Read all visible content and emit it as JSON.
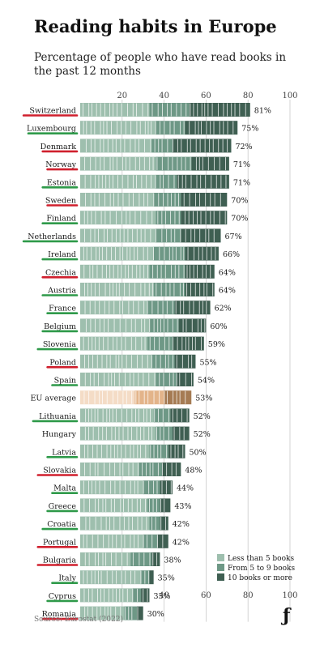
{
  "header": {
    "title": "Reading habits in Europe",
    "subtitle": "Percentage of people who have read books in the past 12 months"
  },
  "footer": {
    "source": "Source: Eurostat (2022)",
    "logo": "ƒ"
  },
  "colors": {
    "less_than_5": "#9ebfae",
    "from_5_to_9": "#6e9886",
    "ten_or_more": "#3f5f52",
    "eu_less_than_5": "#f4dcc6",
    "eu_from_5_to_9": "#e3b48a",
    "eu_ten_or_more": "#a57b53",
    "underline_red": "#d0202e",
    "underline_green": "#2f9a4a"
  },
  "chart_data": {
    "type": "bar",
    "orientation": "horizontal",
    "stacked": true,
    "xlim": [
      0,
      100
    ],
    "x_ticks": [
      20,
      40,
      60,
      80,
      100
    ],
    "grid": true,
    "legend_position": "bottom-right",
    "categories": [
      "Switzerland",
      "Luxembourg",
      "Denmark",
      "Norway",
      "Estonia",
      "Sweden",
      "Finland",
      "Netherlands",
      "Ireland",
      "Czechia",
      "Austria",
      "France",
      "Belgium",
      "Slovenia",
      "Poland",
      "Spain",
      "EU average",
      "Lithuania",
      "Hungary",
      "Latvia",
      "Slovakia",
      "Malta",
      "Greece",
      "Croatia",
      "Portugal",
      "Bulgaria",
      "Italy",
      "Cyprus",
      "Romania"
    ],
    "totals": [
      81,
      75,
      72,
      71,
      71,
      70,
      70,
      67,
      66,
      64,
      64,
      62,
      60,
      59,
      55,
      54,
      53,
      52,
      52,
      50,
      48,
      44,
      43,
      42,
      42,
      38,
      35,
      33,
      30
    ],
    "total_labels": [
      "81%",
      "75%",
      "72%",
      "71%",
      "71%",
      "70%",
      "70%",
      "67%",
      "66%",
      "64%",
      "64%",
      "62%",
      "60%",
      "59%",
      "55%",
      "54%",
      "53%",
      "52%",
      "52%",
      "50%",
      "48%",
      "44%",
      "43%",
      "42%",
      "42%",
      "38%",
      "35%",
      "33%",
      "30%"
    ],
    "underline": [
      "red",
      "green",
      "red",
      "red",
      "green",
      "red",
      "green",
      "green",
      "green",
      "red",
      "green",
      "green",
      "green",
      "green",
      "red",
      "green",
      "none",
      "green",
      "none",
      "green",
      "red",
      "green",
      "green",
      "green",
      "red",
      "red",
      "green",
      "green",
      "red"
    ],
    "series": [
      {
        "name": "Less than 5 books",
        "color_key": "less_than_5",
        "values": [
          33,
          36,
          34,
          36,
          36,
          35,
          36,
          36,
          35,
          33,
          35,
          32,
          33,
          32,
          34,
          36,
          26,
          35,
          36,
          33,
          28,
          30,
          32,
          33,
          30,
          24,
          29,
          25,
          21
        ]
      },
      {
        "name": "From 5 to 9 books",
        "color_key": "from_5_to_9",
        "values": [
          19,
          14,
          10,
          17,
          10,
          13,
          12,
          12,
          15,
          17,
          15,
          13,
          14,
          12,
          11,
          10,
          14,
          8,
          8,
          9,
          11,
          8,
          6,
          5,
          7,
          10,
          4,
          4,
          6
        ]
      },
      {
        "name": "10 books or more",
        "color_key": "ten_or_more",
        "values": [
          29,
          25,
          28,
          18,
          25,
          22,
          22,
          19,
          16,
          14,
          14,
          17,
          13,
          15,
          10,
          8,
          13,
          9,
          8,
          8,
          9,
          6,
          5,
          4,
          5,
          4,
          2,
          4,
          3
        ]
      }
    ]
  }
}
